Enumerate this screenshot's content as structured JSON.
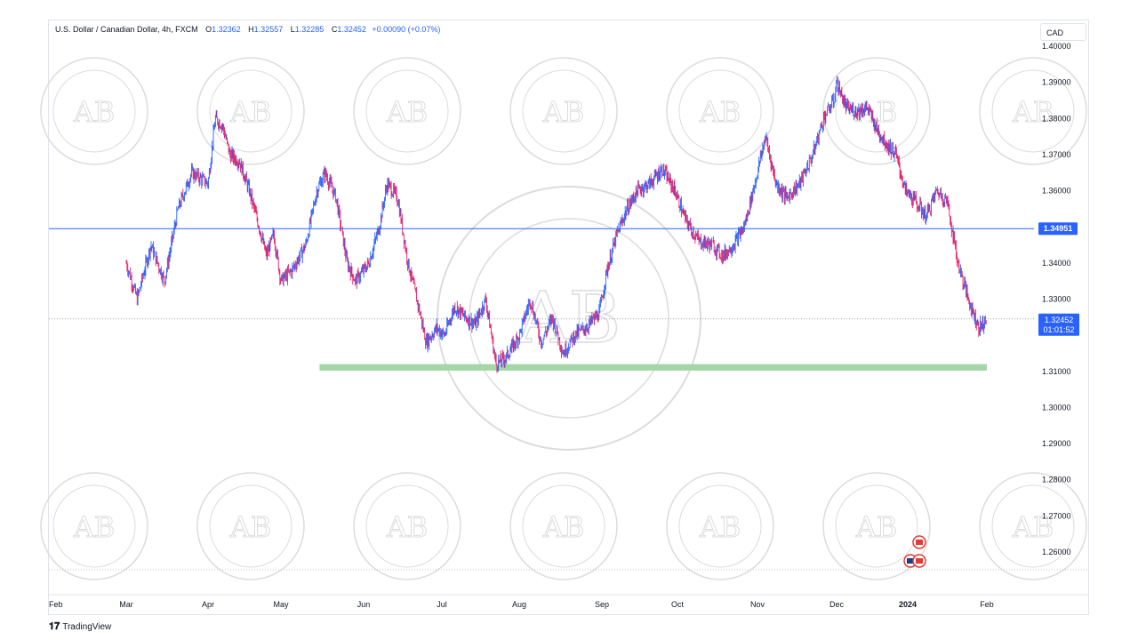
{
  "legend": {
    "symbol": "U.S. Dollar / Canadian Dollar, 4h, FXCM",
    "open_label": "O",
    "open": "1.32362",
    "high_label": "H",
    "high": "1.32557",
    "low_label": "L",
    "low": "1.32285",
    "close_label": "C",
    "close": "1.32452",
    "change": "+0.00090 (+0.07%)"
  },
  "currency_button": "CAD",
  "footer": {
    "brand": "TradingView"
  },
  "colors": {
    "up": "#2962ff",
    "down": "#e91e63",
    "support_zone": "#a5d6a7",
    "hline": "#2962ff"
  },
  "chart_data": {
    "type": "candlestick",
    "title": "",
    "y_ticks": [
      "1.40000",
      "1.39000",
      "1.38000",
      "1.37000",
      "1.36000",
      "1.34000",
      "1.33000",
      "1.31000",
      "1.30000",
      "1.29000",
      "1.28000",
      "1.27000",
      "1.26000"
    ],
    "x_ticks": [
      "Feb",
      "Mar",
      "Apr",
      "May",
      "Jun",
      "Jul",
      "Aug",
      "Sep",
      "Oct",
      "Nov",
      "Dec",
      "2024",
      "Feb"
    ],
    "ylim": [
      1.2542,
      1.4036
    ],
    "horizontal_line": {
      "value": 1.34951,
      "label": "1.34951"
    },
    "price_tag": {
      "value": 1.32452,
      "label": "1.32452",
      "countdown": "01:01:52"
    },
    "support_zone": {
      "from": 1.3102,
      "to": 1.312,
      "x_start": "Apr 15",
      "x_end": "Jan 26"
    },
    "series": [
      {
        "x": [
          "Feb 01",
          "Feb 05",
          "Feb 10",
          "Feb 15",
          "Feb 20",
          "Feb 25",
          "Mar 01",
          "Mar 04",
          "Mar 07",
          "Mar 10",
          "Mar 14",
          "Mar 18",
          "Mar 22",
          "Mar 25",
          "Mar 28",
          "Apr 01",
          "Apr 05",
          "Apr 10",
          "Apr 14",
          "Apr 17",
          "Apr 21",
          "Apr 25",
          "Apr 28",
          "May 03",
          "May 07",
          "May 10",
          "May 14",
          "May 18",
          "May 22",
          "May 25",
          "May 29",
          "Jun 02",
          "Jun 06",
          "Jun 10",
          "Jun 14",
          "Jun 18",
          "Jun 22",
          "Jun 26",
          "Jul 01",
          "Jul 05",
          "Jul 09",
          "Jul 13",
          "Jul 17",
          "Jul 21",
          "Jul 25",
          "Jul 30",
          "Aug 03",
          "Aug 07",
          "Aug 11",
          "Aug 15",
          "Aug 20",
          "Aug 25",
          "Aug 30",
          "Sep 04",
          "Sep 09",
          "Sep 14",
          "Sep 18",
          "Sep 22",
          "Sep 26",
          "Sep 30",
          "Oct 04",
          "Oct 08",
          "Oct 12",
          "Oct 17",
          "Oct 22",
          "Oct 26",
          "Oct 30",
          "Nov 01",
          "Nov 05",
          "Nov 09",
          "Nov 14",
          "Nov 18",
          "Nov 22",
          "Nov 26",
          "Nov 30",
          "Dec 04",
          "Dec 08",
          "Dec 12",
          "Dec 16",
          "Dec 20",
          "Dec 24",
          "Dec 28",
          "Jan 01"
        ],
        "close": [
          1.34,
          1.33,
          1.345,
          1.335,
          1.355,
          1.365,
          1.362,
          1.38,
          1.378,
          1.37,
          1.368,
          1.36,
          1.35,
          1.342,
          1.348,
          1.335,
          1.338,
          1.345,
          1.36,
          1.365,
          1.358,
          1.34,
          1.335,
          1.34,
          1.35,
          1.362,
          1.358,
          1.34,
          1.328,
          1.318,
          1.322,
          1.32,
          1.328,
          1.325,
          1.323,
          1.33,
          1.312,
          1.314,
          1.32,
          1.33,
          1.318,
          1.325,
          1.315,
          1.32,
          1.322,
          1.326,
          1.338,
          1.348,
          1.355,
          1.36,
          1.362,
          1.366,
          1.36,
          1.352,
          1.346,
          1.345,
          1.342,
          1.345,
          1.35,
          1.362,
          1.375,
          1.362,
          1.358,
          1.362,
          1.37,
          1.38,
          1.385,
          1.39,
          1.383,
          1.382,
          1.383,
          1.377,
          1.373,
          1.37,
          1.36,
          1.357,
          1.353,
          1.36,
          1.357,
          1.34,
          1.33,
          1.322,
          1.3245
        ]
      }
    ]
  }
}
